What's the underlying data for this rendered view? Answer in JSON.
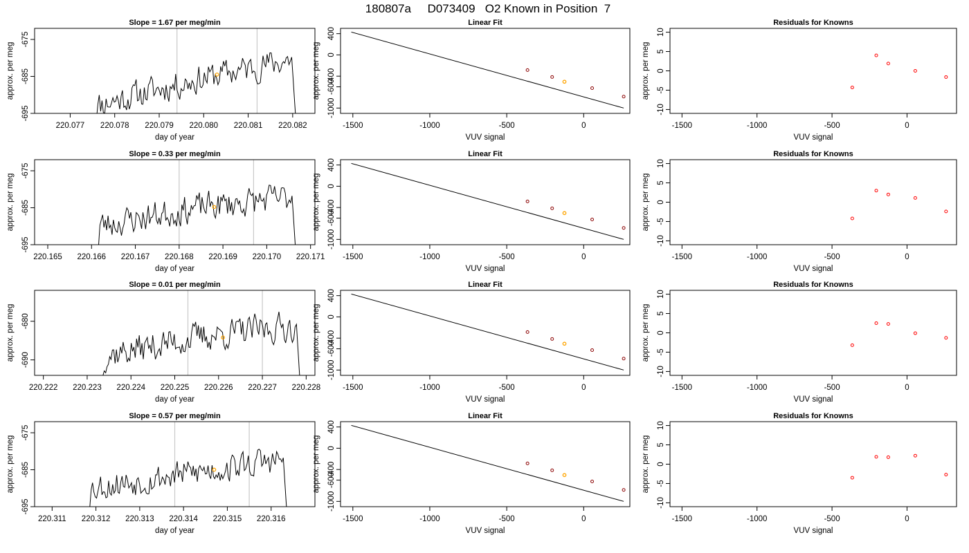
{
  "figure_title": "180807a     D073409   O2 Known in Position  7",
  "colors": {
    "trace": "#000000",
    "highlight": "#FFA500",
    "vertical_marker": "#C8C8C8",
    "residual_point": "#FF0000",
    "fit_point": "#8B0000"
  },
  "chart_data": [
    {
      "row": 0,
      "kind": "timeseries",
      "type": "line",
      "title": "Slope =  1.67  per meg/min",
      "xlabel": "day of year",
      "ylabel": "approx. per meg",
      "xlim": [
        220.0762,
        220.0825
      ],
      "ylim": [
        -695,
        -672
      ],
      "xticks": [
        "220.077",
        "220.078",
        "220.079",
        "220.080",
        "220.081",
        "220.082"
      ],
      "xtick_values": [
        220.077,
        220.078,
        220.079,
        220.08,
        220.081,
        220.082
      ],
      "yticks": [
        "-695",
        "-685",
        "-675"
      ],
      "ytick_values": [
        -695,
        -685,
        -675
      ],
      "vlines": [
        220.0794,
        220.0812
      ],
      "data_start": 220.0775,
      "data_end": 220.0821,
      "level_start": -693,
      "level_mid": -686,
      "level_end": -680,
      "highlight": {
        "x": 220.0803,
        "y": -684.5
      },
      "seed": 11
    },
    {
      "row": 0,
      "kind": "fit",
      "type": "scatter",
      "title": "Linear Fit",
      "xlabel": "VUV signal",
      "ylabel": "approx. per meg",
      "xlim": [
        -1580,
        300
      ],
      "ylim": [
        -1100,
        500
      ],
      "xticks": [
        "-1500",
        "-1000",
        "-500",
        "0"
      ],
      "xtick_values": [
        -1500,
        -1000,
        -500,
        0
      ],
      "yticks": [
        "-1000",
        "-600",
        "-400",
        "0",
        "400"
      ],
      "ytick_values": [
        -1000,
        -600,
        -400,
        0,
        400
      ],
      "line": {
        "x": [
          -1510,
          260
        ],
        "y": [
          430,
          -1000
        ]
      },
      "points": {
        "x": [
          -365,
          -205,
          55,
          260
        ],
        "y": [
          -285,
          -415,
          -625,
          -785
        ]
      },
      "highlight": {
        "x": -125,
        "y": -505
      }
    },
    {
      "row": 0,
      "kind": "residuals",
      "type": "scatter",
      "title": "Residuals for Knowns",
      "xlabel": "VUV signal",
      "ylabel": "approx. per meg",
      "xlim": [
        -1580,
        330
      ],
      "ylim": [
        -11,
        11
      ],
      "xticks": [
        "-1500",
        "-1000",
        "-500",
        "0"
      ],
      "xtick_values": [
        -1500,
        -1000,
        -500,
        0
      ],
      "yticks": [
        "-10",
        "-5",
        "0",
        "5",
        "10"
      ],
      "ytick_values": [
        -10,
        -5,
        0,
        5,
        10
      ],
      "points": {
        "x": [
          -365,
          -205,
          -125,
          55,
          260
        ],
        "y": [
          -4.3,
          4.0,
          1.9,
          0.0,
          -1.6
        ]
      }
    },
    {
      "row": 1,
      "kind": "timeseries",
      "type": "line",
      "title": "Slope =  0.33  per meg/min",
      "xlabel": "day of year",
      "ylabel": "approx. per meg",
      "xlim": [
        220.1647,
        220.1711
      ],
      "ylim": [
        -695,
        -672
      ],
      "xticks": [
        "220.165",
        "220.166",
        "220.167",
        "220.168",
        "220.169",
        "220.170",
        "220.171"
      ],
      "xtick_values": [
        220.165,
        220.166,
        220.167,
        220.168,
        220.169,
        220.17,
        220.171
      ],
      "yticks": [
        "-695",
        "-685",
        "-675"
      ],
      "ytick_values": [
        -695,
        -685,
        -675
      ],
      "vlines": [
        220.168,
        220.1697
      ],
      "data_start": 220.1661,
      "data_end": 220.1707,
      "level_start": -690,
      "level_mid": -685,
      "level_end": -682,
      "highlight": {
        "x": 220.1688,
        "y": -684.8
      },
      "seed": 23
    },
    {
      "row": 1,
      "kind": "fit",
      "type": "scatter",
      "title": "Linear Fit",
      "xlabel": "VUV signal",
      "ylabel": "approx. per meg",
      "xlim": [
        -1580,
        300
      ],
      "ylim": [
        -1100,
        500
      ],
      "xticks": [
        "-1500",
        "-1000",
        "-500",
        "0"
      ],
      "xtick_values": [
        -1500,
        -1000,
        -500,
        0
      ],
      "yticks": [
        "-1000",
        "-600",
        "-400",
        "0",
        "400"
      ],
      "ytick_values": [
        -1000,
        -600,
        -400,
        0,
        400
      ],
      "line": {
        "x": [
          -1510,
          260
        ],
        "y": [
          430,
          -1000
        ]
      },
      "points": {
        "x": [
          -365,
          -205,
          55,
          260
        ],
        "y": [
          -285,
          -415,
          -625,
          -785
        ]
      },
      "highlight": {
        "x": -125,
        "y": -505
      }
    },
    {
      "row": 1,
      "kind": "residuals",
      "type": "scatter",
      "title": "Residuals for Knowns",
      "xlabel": "VUV signal",
      "ylabel": "approx. per meg",
      "xlim": [
        -1580,
        330
      ],
      "ylim": [
        -11,
        11
      ],
      "xticks": [
        "-1500",
        "-1000",
        "-500",
        "0"
      ],
      "xtick_values": [
        -1500,
        -1000,
        -500,
        0
      ],
      "yticks": [
        "-10",
        "-5",
        "0",
        "5",
        "10"
      ],
      "ytick_values": [
        -10,
        -5,
        0,
        5,
        10
      ],
      "points": {
        "x": [
          -365,
          -205,
          -125,
          55,
          260
        ],
        "y": [
          -4.2,
          3.0,
          2.0,
          1.1,
          -2.4
        ]
      }
    },
    {
      "row": 2,
      "kind": "timeseries",
      "type": "line",
      "title": "Slope =  0.01  per meg/min",
      "xlabel": "day of year",
      "ylabel": "approx. per meg",
      "xlim": [
        220.2218,
        220.2282
      ],
      "ylim": [
        -694,
        -672
      ],
      "xticks": [
        "220.222",
        "220.223",
        "220.224",
        "220.225",
        "220.226",
        "220.227",
        "220.228"
      ],
      "xtick_values": [
        220.222,
        220.223,
        220.224,
        220.225,
        220.226,
        220.227,
        220.228
      ],
      "yticks": [
        "-690",
        "-680"
      ],
      "ytick_values": [
        -690,
        -680
      ],
      "vlines": [
        220.2253,
        220.227
      ],
      "data_start": 220.2233,
      "data_end": 220.2279,
      "level_start": -689,
      "level_mid": -684,
      "level_end": -681,
      "highlight": {
        "x": 220.2261,
        "y": -684.2
      },
      "seed": 37
    },
    {
      "row": 2,
      "kind": "fit",
      "type": "scatter",
      "title": "Linear Fit",
      "xlabel": "VUV signal",
      "ylabel": "approx. per meg",
      "xlim": [
        -1580,
        300
      ],
      "ylim": [
        -1100,
        500
      ],
      "xticks": [
        "-1500",
        "-1000",
        "-500",
        "0"
      ],
      "xtick_values": [
        -1500,
        -1000,
        -500,
        0
      ],
      "yticks": [
        "-1000",
        "-600",
        "-400",
        "0",
        "400"
      ],
      "ytick_values": [
        -1000,
        -600,
        -400,
        0,
        400
      ],
      "line": {
        "x": [
          -1510,
          260
        ],
        "y": [
          430,
          -1000
        ]
      },
      "points": {
        "x": [
          -365,
          -205,
          55,
          260
        ],
        "y": [
          -285,
          -415,
          -625,
          -785
        ]
      },
      "highlight": {
        "x": -125,
        "y": -505
      }
    },
    {
      "row": 2,
      "kind": "residuals",
      "type": "scatter",
      "title": "Residuals for Knowns",
      "xlabel": "VUV signal",
      "ylabel": "approx. per meg",
      "xlim": [
        -1580,
        330
      ],
      "ylim": [
        -11,
        11
      ],
      "xticks": [
        "-1500",
        "-1000",
        "-500",
        "0"
      ],
      "xtick_values": [
        -1500,
        -1000,
        -500,
        0
      ],
      "yticks": [
        "-10",
        "-5",
        "0",
        "5",
        "10"
      ],
      "ytick_values": [
        -10,
        -5,
        0,
        5,
        10
      ],
      "points": {
        "x": [
          -365,
          -205,
          -125,
          55,
          260
        ],
        "y": [
          -3.2,
          2.5,
          2.3,
          -0.1,
          -1.3
        ]
      }
    },
    {
      "row": 3,
      "kind": "timeseries",
      "type": "line",
      "title": "Slope =  0.57  per meg/min",
      "xlabel": "day of year",
      "ylabel": "approx. per meg",
      "xlim": [
        220.3106,
        220.317
      ],
      "ylim": [
        -695,
        -672
      ],
      "xticks": [
        "220.311",
        "220.312",
        "220.313",
        "220.314",
        "220.315",
        "220.316"
      ],
      "xtick_values": [
        220.311,
        220.312,
        220.313,
        220.314,
        220.315,
        220.316
      ],
      "yticks": [
        "-695",
        "-685",
        "-675"
      ],
      "ytick_values": [
        -695,
        -685,
        -675
      ],
      "vlines": [
        220.3138,
        220.3155
      ],
      "data_start": 220.3118,
      "data_end": 220.3164,
      "level_start": -690,
      "level_mid": -686,
      "level_end": -682,
      "highlight": {
        "x": 220.3147,
        "y": -685.0
      },
      "seed": 53
    },
    {
      "row": 3,
      "kind": "fit",
      "type": "scatter",
      "title": "Linear Fit",
      "xlabel": "VUV signal",
      "ylabel": "approx. per meg",
      "xlim": [
        -1580,
        300
      ],
      "ylim": [
        -1100,
        500
      ],
      "xticks": [
        "-1500",
        "-1000",
        "-500",
        "0"
      ],
      "xtick_values": [
        -1500,
        -1000,
        -500,
        0
      ],
      "yticks": [
        "-1000",
        "-600",
        "-400",
        "0",
        "400"
      ],
      "ytick_values": [
        -1000,
        -600,
        -400,
        0,
        400
      ],
      "line": {
        "x": [
          -1510,
          260
        ],
        "y": [
          430,
          -1000
        ]
      },
      "points": {
        "x": [
          -365,
          -205,
          55,
          260
        ],
        "y": [
          -285,
          -415,
          -625,
          -785
        ]
      },
      "highlight": {
        "x": -125,
        "y": -505
      }
    },
    {
      "row": 3,
      "kind": "residuals",
      "type": "scatter",
      "title": "Residuals for Knowns",
      "xlabel": "VUV signal",
      "ylabel": "approx. per meg",
      "xlim": [
        -1580,
        330
      ],
      "ylim": [
        -11,
        11
      ],
      "xticks": [
        "-1500",
        "-1000",
        "-500",
        "0"
      ],
      "xtick_values": [
        -1500,
        -1000,
        -500,
        0
      ],
      "yticks": [
        "-10",
        "-5",
        "0",
        "5",
        "10"
      ],
      "ytick_values": [
        -10,
        -5,
        0,
        5,
        10
      ],
      "points": {
        "x": [
          -365,
          -205,
          -125,
          55,
          260
        ],
        "y": [
          -3.5,
          1.9,
          1.8,
          2.2,
          -2.7
        ]
      }
    }
  ]
}
